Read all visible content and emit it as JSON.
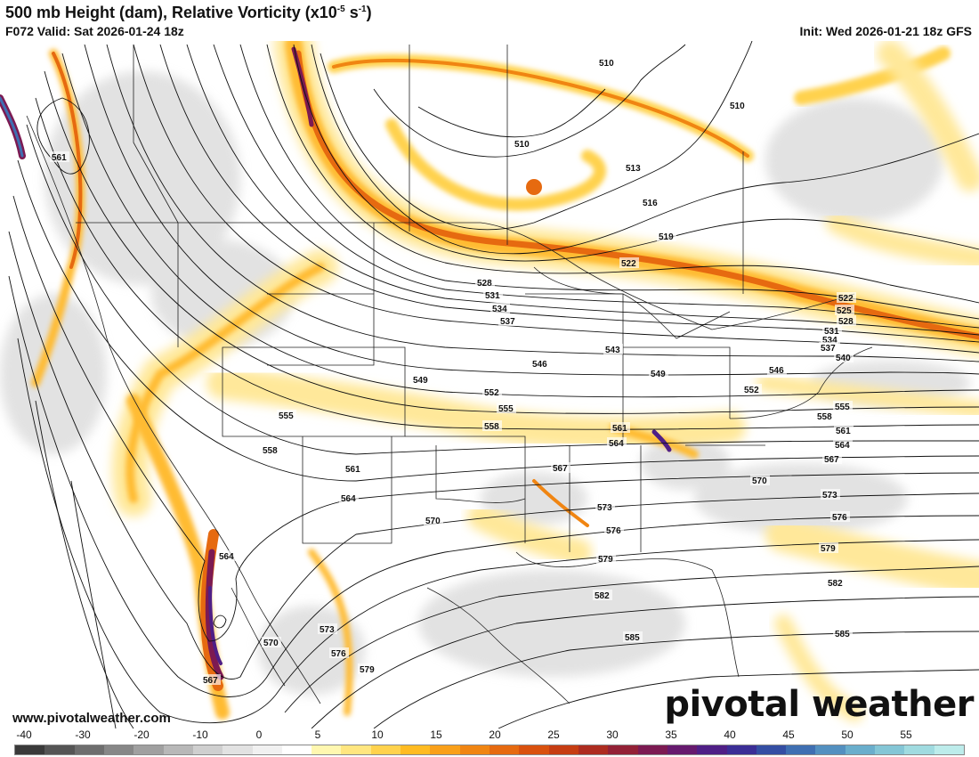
{
  "header": {
    "title": "500 mb Height (dam), Relative Vorticity (x10",
    "title_exp": "-5",
    "title_unit": " s",
    "title_exp2": "-1",
    "title_close": ")",
    "valid": "F072 Valid: Sat 2026-01-24 18z",
    "init": "Init: Wed 2026-01-21 18z GFS"
  },
  "footer": {
    "website": "www.pivotalweather.com",
    "brand": "pivotal weather"
  },
  "colorbar": {
    "ticks": [
      "-40",
      "-30",
      "-20",
      "-10",
      "0",
      "5",
      "10",
      "15",
      "20",
      "25",
      "30",
      "35",
      "40",
      "45",
      "50",
      "55"
    ],
    "colors": [
      "#3a3a3a",
      "#555555",
      "#6e6e6e",
      "#878787",
      "#a0a0a0",
      "#b8b8b8",
      "#cfcfcf",
      "#e2e2e2",
      "#f1f1f1",
      "#ffffff",
      "#fff7b0",
      "#ffe680",
      "#ffd24d",
      "#ffbb22",
      "#f9a01a",
      "#f08512",
      "#e66a10",
      "#d9510e",
      "#c63d12",
      "#ad2c20",
      "#932136",
      "#7c1a52",
      "#661a6e",
      "#4f1f86",
      "#3b2e96",
      "#344ea3",
      "#3f6fb2",
      "#5390c0",
      "#6aaecc",
      "#84c6d6",
      "#a0dbe0",
      "#bdeceb"
    ]
  },
  "contours": {
    "labels": [
      "510",
      "510",
      "510",
      "513",
      "516",
      "519",
      "522",
      "522",
      "525",
      "528",
      "528",
      "531",
      "531",
      "534",
      "534",
      "537",
      "537",
      "540",
      "543",
      "546",
      "546",
      "549",
      "549",
      "552",
      "552",
      "555",
      "555",
      "555",
      "558",
      "558",
      "558",
      "561",
      "561",
      "561",
      "561",
      "564",
      "564",
      "564",
      "564",
      "567",
      "567",
      "567",
      "570",
      "570",
      "570",
      "573",
      "573",
      "573",
      "576",
      "576",
      "576",
      "579",
      "579",
      "579",
      "582",
      "582",
      "585",
      "585"
    ]
  },
  "colors": {
    "vort_weak": "#ffe89a",
    "vort_mod": "#ffbb33",
    "vort_strong": "#e66a10",
    "vort_max": "#7c1a52",
    "negative": "#d0d0d0",
    "contour": "#111111",
    "boundary": "#222222"
  }
}
